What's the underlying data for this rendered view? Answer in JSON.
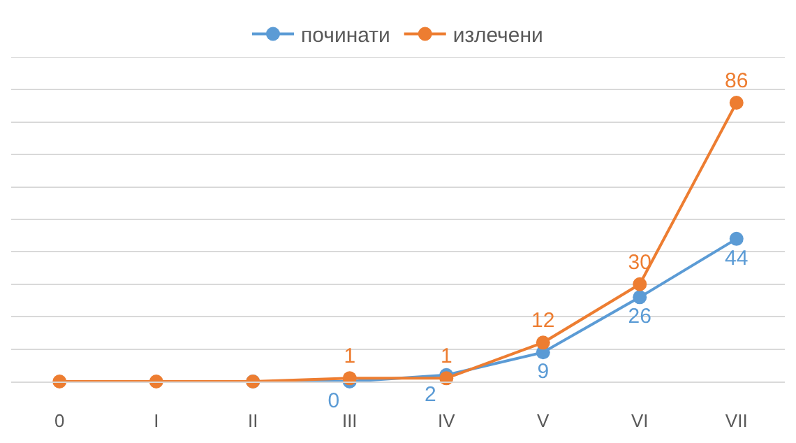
{
  "chart_data": {
    "type": "line",
    "categories": [
      "0",
      "I",
      "II",
      "III",
      "IV",
      "V",
      "VI",
      "VII"
    ],
    "series": [
      {
        "name": "починати",
        "color": "#5b9bd5",
        "values": [
          null,
          null,
          0,
          0,
          2,
          9,
          26,
          44
        ],
        "value_labels": [
          null,
          null,
          null,
          "0",
          "2",
          "9",
          "26",
          "44"
        ]
      },
      {
        "name": "излечени",
        "color": "#ed7d31",
        "values": [
          0,
          0,
          0,
          1,
          1,
          12,
          30,
          86
        ],
        "value_labels": [
          null,
          null,
          null,
          "1",
          "1",
          "12",
          "30",
          "86"
        ]
      }
    ],
    "ylim": [
      0,
      100
    ],
    "yticks": [
      {
        "value": 0,
        "label": null
      },
      {
        "value": 10,
        "label": null
      },
      {
        "value": 20,
        "label": null
      },
      {
        "value": 30,
        "label": null
      },
      {
        "value": 40,
        "label": null
      },
      {
        "value": 50,
        "label": null
      },
      {
        "value": 60,
        "label": null
      },
      {
        "value": 70,
        "label": null
      },
      {
        "value": 80,
        "label": null
      },
      {
        "value": 90,
        "label": null
      },
      {
        "value": 100,
        "label": null
      }
    ],
    "tick_labels": "x",
    "grid": "y",
    "legend": "top",
    "marker": "circle",
    "line_style": "solid"
  }
}
